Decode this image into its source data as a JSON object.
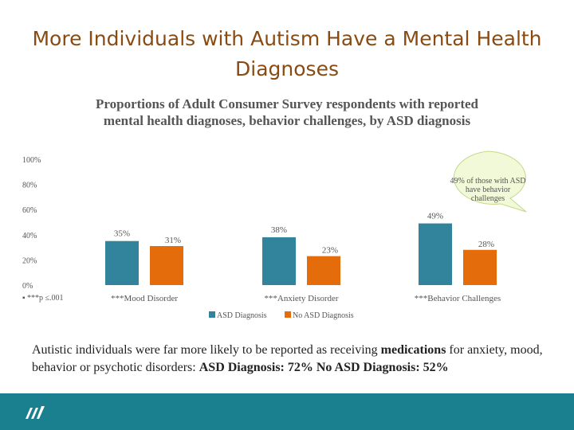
{
  "slide": {
    "title": "More Individuals with Autism Have a Mental Health Diagnoses",
    "summary_prefix": "Autistic individuals were far more likely to be reported as receiving ",
    "summary_bold": "medications",
    "summary_suffix": " for anxiety, mood, behavior or psychotic disorders:  ",
    "summary_tail": "ASD Diagnosis: 72% No ASD Diagnosis: 52%",
    "footnote": "***p ≤.001",
    "callout": "49% of those with ASD have behavior challenges"
  },
  "colors": {
    "title": "#8a4b12",
    "asd": "#31849b",
    "no_asd": "#e46c0a",
    "footer": "#1a7f8e"
  },
  "chart_data": {
    "type": "bar",
    "title": "Proportions of Adult Consumer Survey respondents with reported mental health diagnoses, behavior challenges, by ASD diagnosis",
    "categories": [
      "***Mood Disorder",
      "***Anxiety Disorder",
      "***Behavior Challenges"
    ],
    "series": [
      {
        "name": "ASD Diagnosis",
        "values": [
          35,
          38,
          49
        ],
        "labels": [
          "35%",
          "38%",
          "49%"
        ]
      },
      {
        "name": "No ASD Diagnosis",
        "values": [
          31,
          23,
          28
        ],
        "labels": [
          "31%",
          "23%",
          "28%"
        ]
      }
    ],
    "yticks": [
      "0%",
      "20%",
      "40%",
      "60%",
      "80%",
      "100%"
    ],
    "ylim": [
      0,
      100
    ],
    "grid": false,
    "legend": "bottom"
  }
}
